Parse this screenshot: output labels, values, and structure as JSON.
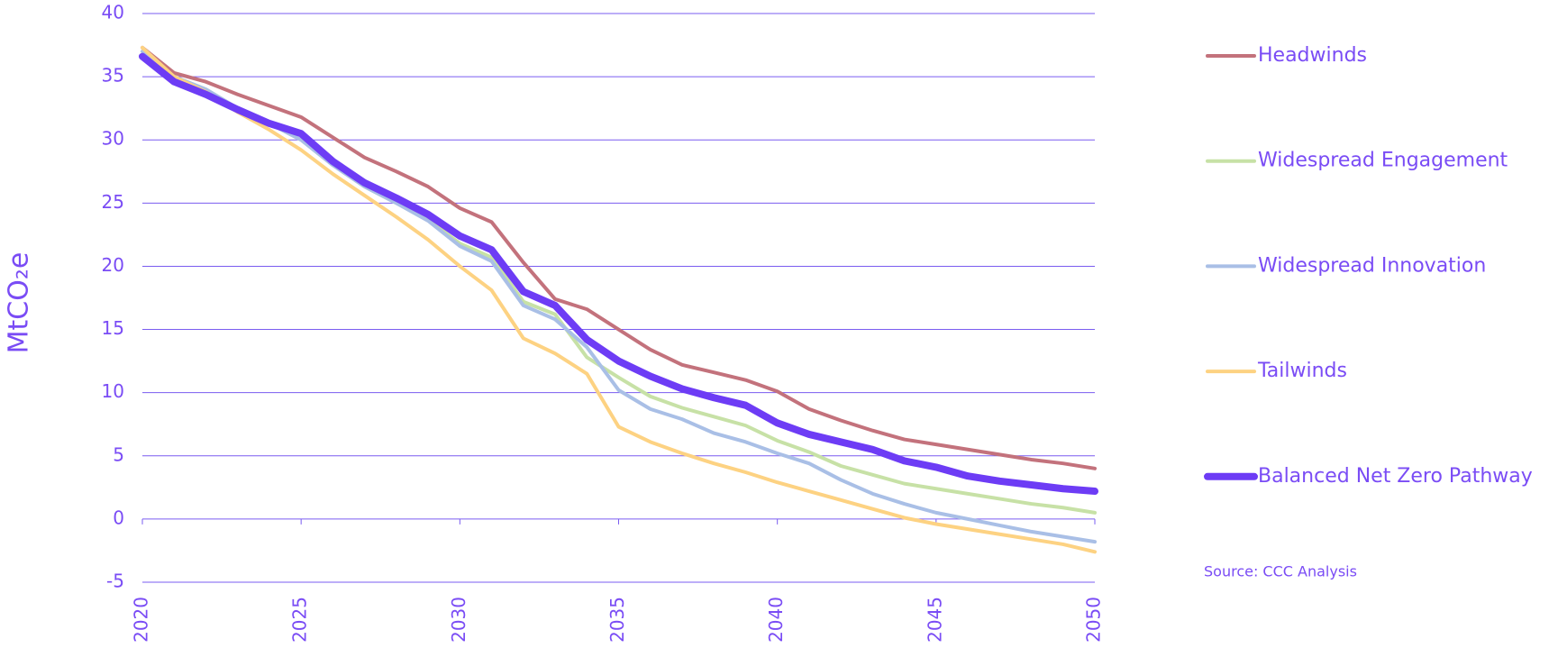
{
  "chart_data": {
    "type": "line",
    "y_label": "MtCO₂e",
    "source": "Source: CCC Analysis",
    "x": [
      2020,
      2021,
      2022,
      2023,
      2024,
      2025,
      2026,
      2027,
      2028,
      2029,
      2030,
      2031,
      2032,
      2033,
      2034,
      2035,
      2036,
      2037,
      2038,
      2039,
      2040,
      2041,
      2042,
      2043,
      2044,
      2045,
      2046,
      2047,
      2048,
      2049,
      2050
    ],
    "xlim": [
      2020,
      2050
    ],
    "xticks": [
      2020,
      2025,
      2030,
      2035,
      2040,
      2045,
      2050
    ],
    "ylim": [
      -5,
      40
    ],
    "yticks": [
      -5,
      0,
      5,
      10,
      15,
      20,
      25,
      30,
      35,
      40
    ],
    "grid": true,
    "legend": "right",
    "series": [
      {
        "name": "Headwinds",
        "color": "#c3727c",
        "linewidth": 4,
        "values": [
          37.3,
          35.3,
          34.6,
          33.6,
          32.7,
          31.8,
          30.2,
          28.6,
          27.5,
          26.3,
          24.6,
          23.5,
          20.3,
          17.4,
          16.6,
          15.0,
          13.4,
          12.2,
          11.6,
          11.0,
          10.1,
          8.7,
          7.8,
          7.0,
          6.3,
          5.9,
          5.5,
          5.1,
          4.7,
          4.4,
          4.0
        ]
      },
      {
        "name": "Widespread Engagement",
        "color": "#c7e1a6",
        "linewidth": 4,
        "values": [
          37.0,
          35.0,
          34.0,
          32.5,
          31.3,
          30.0,
          28.0,
          26.3,
          25.0,
          23.7,
          21.8,
          20.7,
          17.2,
          16.2,
          12.8,
          11.2,
          9.7,
          8.8,
          8.1,
          7.4,
          6.2,
          5.3,
          4.2,
          3.5,
          2.8,
          2.4,
          2.0,
          1.6,
          1.2,
          0.9,
          0.5
        ]
      },
      {
        "name": "Widespread Innovation",
        "color": "#a9bfe6",
        "linewidth": 4,
        "values": [
          37.0,
          35.0,
          34.0,
          32.5,
          31.3,
          30.0,
          28.0,
          26.3,
          25.0,
          23.6,
          21.6,
          20.4,
          16.9,
          15.8,
          13.6,
          10.2,
          8.7,
          7.9,
          6.8,
          6.1,
          5.2,
          4.4,
          3.1,
          2.0,
          1.2,
          0.5,
          0.0,
          -0.5,
          -1.0,
          -1.4,
          -1.8
        ]
      },
      {
        "name": "Tailwinds",
        "color": "#fdd282",
        "linewidth": 4,
        "values": [
          37.3,
          35.0,
          33.8,
          32.2,
          30.8,
          29.2,
          27.3,
          25.6,
          23.9,
          22.1,
          20.0,
          18.1,
          14.3,
          13.1,
          11.5,
          7.3,
          6.1,
          5.2,
          4.4,
          3.7,
          2.9,
          2.2,
          1.5,
          0.8,
          0.1,
          -0.4,
          -0.8,
          -1.2,
          -1.6,
          -2.0,
          -2.6
        ]
      },
      {
        "name": "Balanced Net Zero Pathway",
        "color": "#6d3cf5",
        "linewidth": 8,
        "values": [
          36.6,
          34.6,
          33.6,
          32.4,
          31.3,
          30.5,
          28.3,
          26.6,
          25.4,
          24.1,
          22.4,
          21.3,
          18.0,
          16.9,
          14.2,
          12.5,
          11.3,
          10.3,
          9.6,
          9.0,
          7.6,
          6.7,
          6.1,
          5.5,
          4.6,
          4.1,
          3.4,
          3.0,
          2.7,
          2.4,
          2.2
        ]
      }
    ]
  }
}
